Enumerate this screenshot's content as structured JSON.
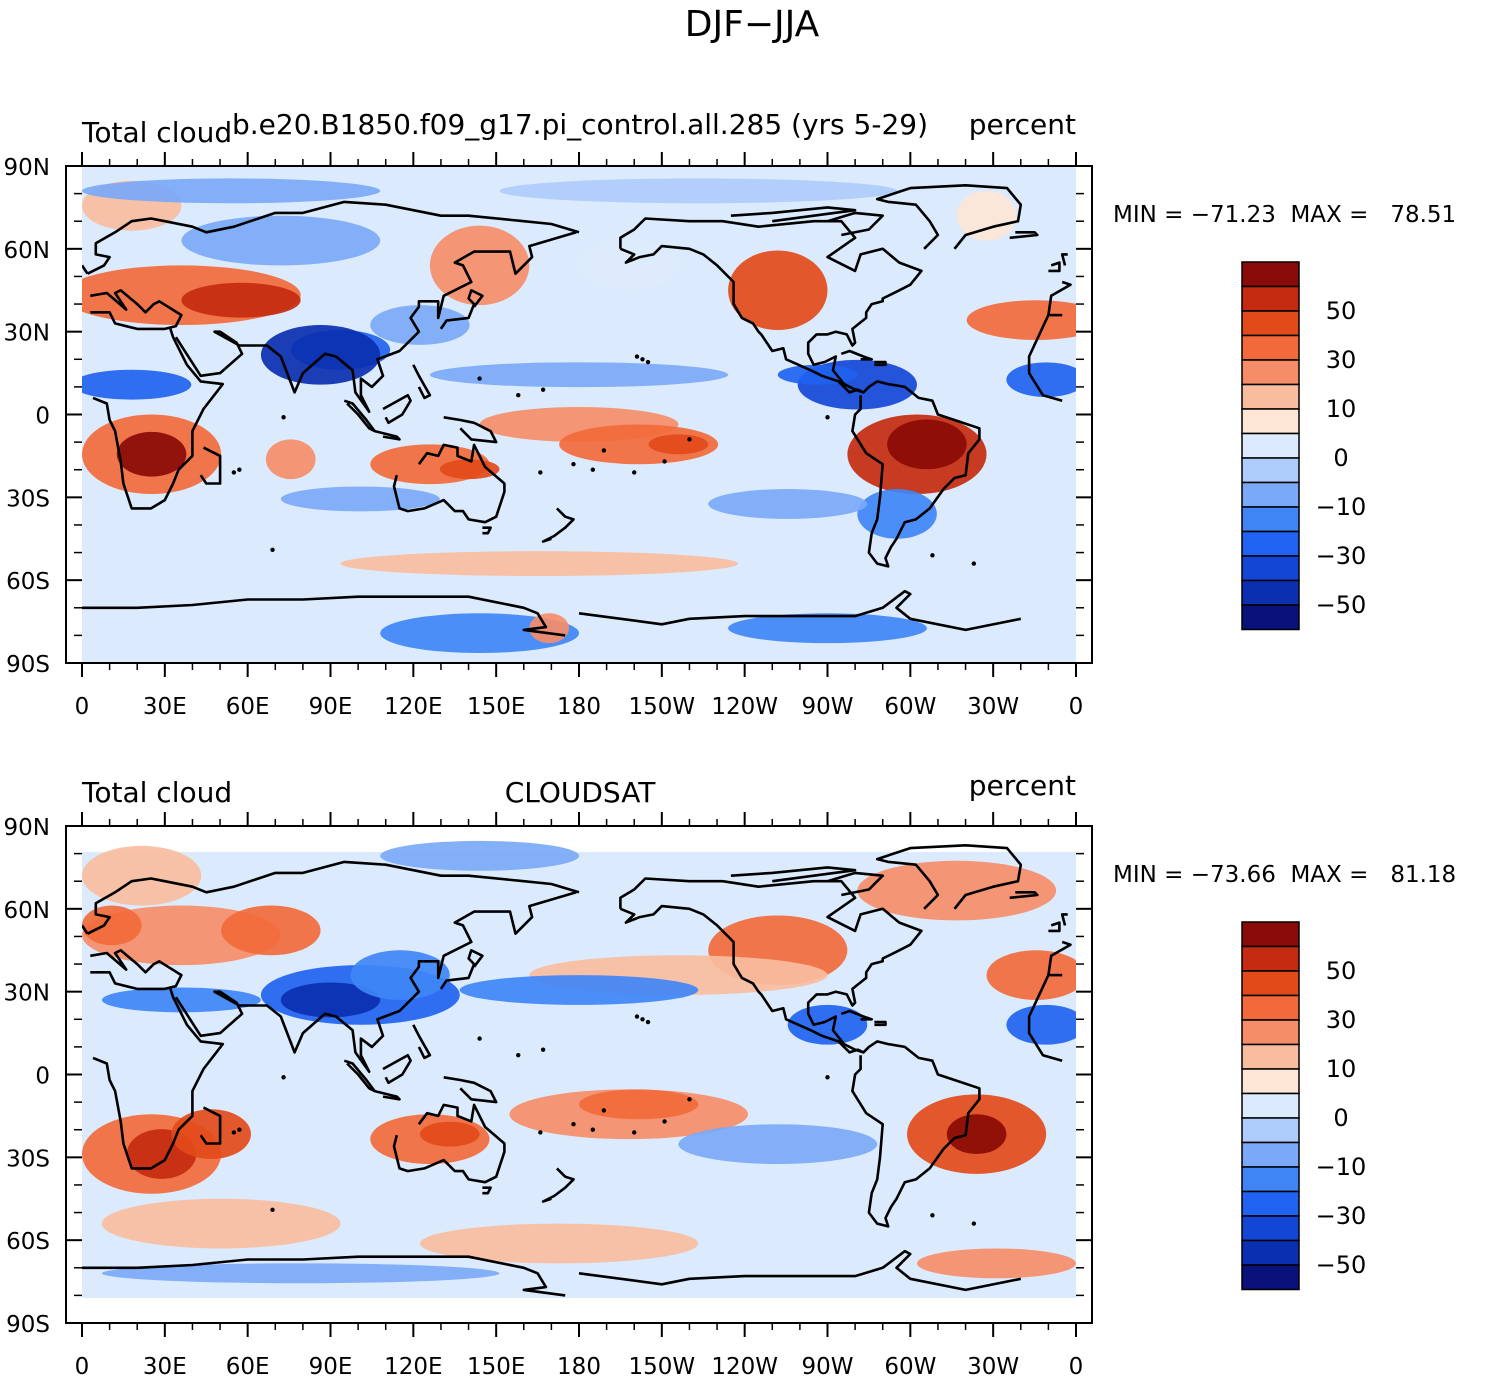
{
  "main_title": "DJF−JJA",
  "colors": {
    "levels": [
      "#08127a",
      "#0a2fb0",
      "#1446d6",
      "#1f63f0",
      "#3f85f6",
      "#7aa9f7",
      "#aeccfb",
      "#dceafd",
      "#fde6d6",
      "#f8bd9f",
      "#f58d69",
      "#f26a3b",
      "#e34a1a",
      "#c52b10",
      "#8a0b07"
    ]
  },
  "panels": [
    {
      "left_label": "Total cloud",
      "center_label": "b.e20.B1850.f09_g17.pi_control.all.285 (yrs 5-29)",
      "right_label": "percent",
      "stats_text": "MIN = −71.23  MAX =   78.51",
      "colorbar_labels": [
        "50",
        "30",
        "10",
        "0",
        "−10",
        "−30",
        "−50"
      ],
      "chart_data": {
        "type": "heatmap",
        "x_ticks": [
          "0",
          "30E",
          "60E",
          "90E",
          "120E",
          "150E",
          "180",
          "150W",
          "120W",
          "90W",
          "60W",
          "30W",
          "0"
        ],
        "y_ticks": [
          "90N",
          "60N",
          "30N",
          "0",
          "30S",
          "60S",
          "90S"
        ],
        "min": -71.23,
        "max": 78.51,
        "units": "percent"
      }
    },
    {
      "left_label": "Total cloud",
      "center_label": "CLOUDSAT",
      "right_label": "percent",
      "stats_text": "MIN = −73.66  MAX =   81.18",
      "colorbar_labels": [
        "50",
        "30",
        "10",
        "0",
        "−10",
        "−30",
        "−50"
      ],
      "chart_data": {
        "type": "heatmap",
        "x_ticks": [
          "0",
          "30E",
          "60E",
          "90E",
          "120E",
          "150E",
          "180",
          "150W",
          "120W",
          "90W",
          "60W",
          "30W",
          "0"
        ],
        "y_ticks": [
          "90N",
          "60N",
          "30N",
          "0",
          "30S",
          "60S",
          "90S"
        ],
        "min": -73.66,
        "max": 81.18,
        "units": "percent"
      }
    }
  ]
}
